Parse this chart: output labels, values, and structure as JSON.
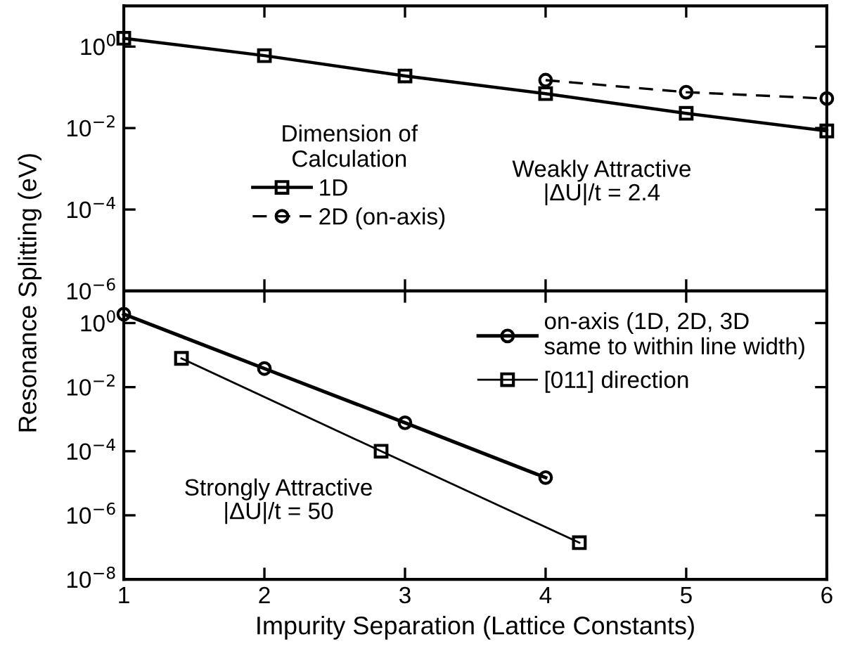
{
  "chart_data": [
    {
      "type": "line",
      "ylabel": "Resonance Splitting (eV)",
      "legend_title": "Dimension of\nCalculation",
      "log": "y",
      "legend": "center left",
      "tick_labels": "y",
      "grid": false,
      "xlim": [
        1,
        6
      ],
      "xticks": [
        {
          "value": 1,
          "label": null
        },
        {
          "value": 2,
          "label": null
        },
        {
          "value": 3,
          "label": null
        },
        {
          "value": 4,
          "label": null
        },
        {
          "value": 5,
          "label": null
        },
        {
          "value": 6,
          "label": null
        }
      ],
      "ylim": [
        1e-06,
        10
      ],
      "yticks": [
        {
          "value": 1,
          "label": "10$^{0}$"
        },
        {
          "value": 0.01,
          "label": "10$^{−2}$"
        },
        {
          "value": 0.0001,
          "label": "10$^{−4}$"
        },
        {
          "value": 1e-06,
          "label": "10$^{−6}$"
        }
      ],
      "annotations": [
        "Weakly Attractive\n|ΔU|/t = 2.4"
      ],
      "series": [
        {
          "name": "1D",
          "color": "#000000",
          "marker": "square",
          "line_style": "solid",
          "x": [
            1,
            2,
            3,
            4,
            5,
            6
          ],
          "values": [
            1.6,
            0.6,
            0.19,
            0.07,
            0.023,
            0.0085
          ]
        },
        {
          "name": "2D (on-axis)",
          "color": "#000000",
          "marker": "circle",
          "line_style": "dashed",
          "x": [
            4,
            5,
            6
          ],
          "values": [
            0.15,
            0.076,
            0.053
          ]
        }
      ]
    },
    {
      "type": "line",
      "xlabel": "Impurity Separation (Lattice Constants)",
      "log": "y",
      "legend": "top right",
      "grid": false,
      "xlim": [
        1,
        6
      ],
      "xticks": [
        1,
        2,
        3,
        4,
        5,
        6
      ],
      "ylim": [
        1e-08,
        10
      ],
      "yticks": [
        {
          "value": 1,
          "label": "10$^{0}$"
        },
        {
          "value": 0.01,
          "label": "10$^{−2}$"
        },
        {
          "value": 0.0001,
          "label": "10$^{−4}$"
        },
        {
          "value": 1e-06,
          "label": "10$^{−6}$"
        },
        {
          "value": 1e-08,
          "label": "10$^{−8}$"
        }
      ],
      "annotations": [
        "Strongly Attractive\n|ΔU|/t = 50"
      ],
      "series": [
        {
          "name": "on-axis (1D, 2D, 3D\nsame to within line width)",
          "color": "#000000",
          "marker": "circle",
          "line_style": "solid",
          "x": [
            1,
            2,
            3,
            4
          ],
          "values": [
            1.9,
            0.038,
            0.00077,
            1.5e-05
          ]
        },
        {
          "name": "[011] direction",
          "color": "#000000",
          "marker": "square",
          "line_style": "solid",
          "x": [
            1.41,
            2.83,
            4.24
          ],
          "values": [
            0.079,
            0.0001,
            1.4e-07
          ]
        }
      ]
    }
  ]
}
